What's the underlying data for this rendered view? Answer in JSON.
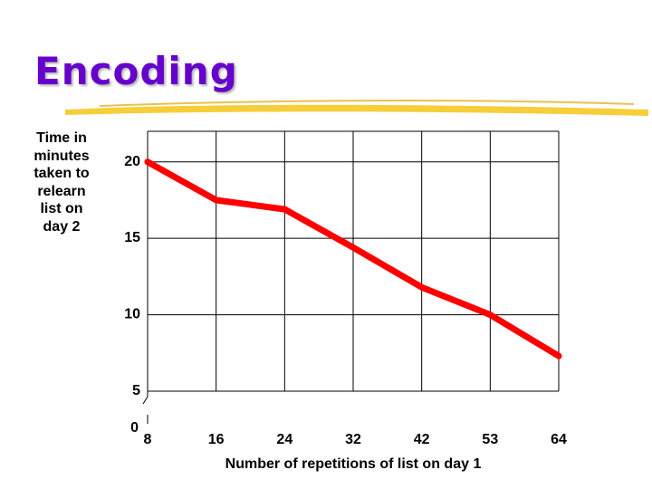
{
  "slide": {
    "title": "Encoding",
    "accent_color": "#6600cc",
    "highlight_color": "#f5c518"
  },
  "chart_data": {
    "type": "line",
    "title": "",
    "ylabel": "Time in\nminutes\ntaken to\nrelearn\nlist on\nday 2",
    "xlabel": "Number of repetitions of list on day 1",
    "x_tick_labels": [
      "8",
      "16",
      "24",
      "32",
      "42",
      "53",
      "64"
    ],
    "y_tick_labels": [
      "0",
      "5",
      "10",
      "15",
      "20"
    ],
    "ylim": [
      0,
      22
    ],
    "y_axis_break_between": [
      0,
      5
    ],
    "grid": true,
    "series": [
      {
        "color": "#ff0000",
        "x": [
          "8",
          "16",
          "24",
          "32",
          "42",
          "53",
          "64"
        ],
        "values": [
          20,
          17.5,
          16.9,
          14.4,
          11.8,
          10,
          7.3
        ]
      }
    ]
  }
}
